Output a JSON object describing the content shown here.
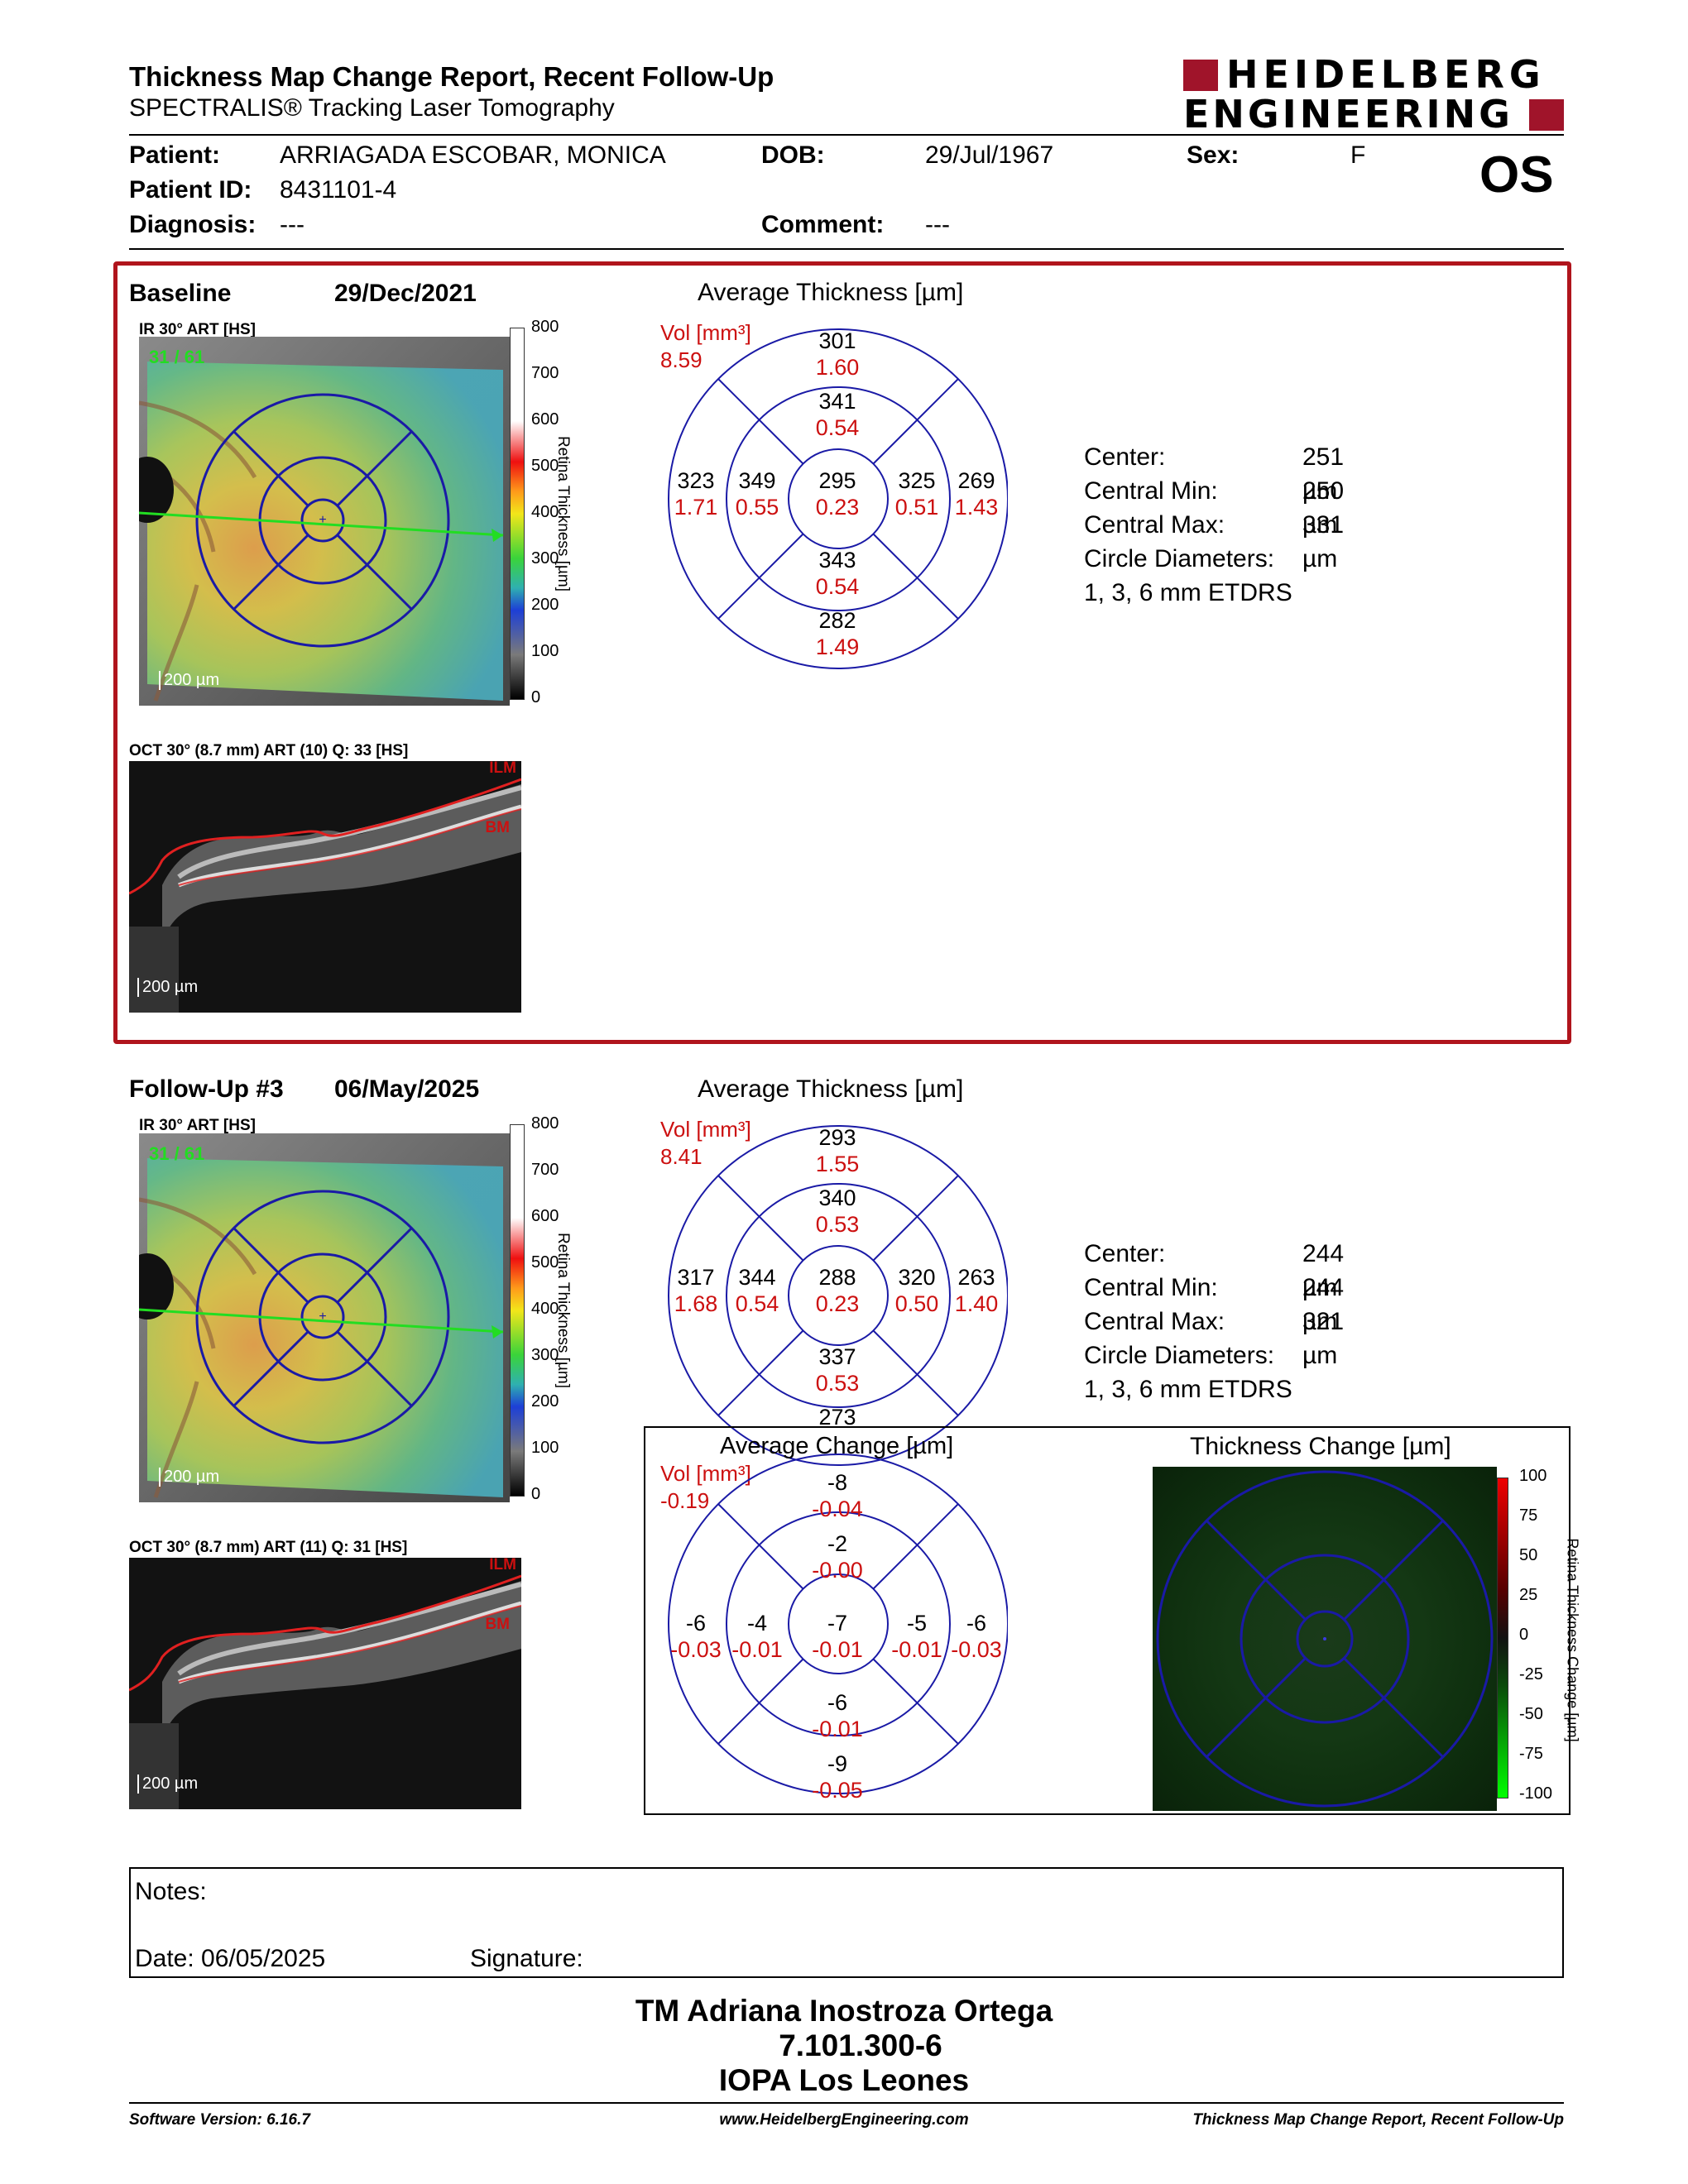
{
  "header": {
    "title": "Thickness Map Change Report, Recent Follow-Up",
    "subtitle": "SPECTRALIS® Tracking Laser Tomography",
    "logo_line1": "HEIDELBERG",
    "logo_line2": "ENGINEERING",
    "eye": "OS"
  },
  "patient": {
    "patient_label": "Patient:",
    "patient_value": "ARRIAGADA ESCOBAR, MONICA",
    "dob_label": "DOB:",
    "dob_value": "29/Jul/1967",
    "sex_label": "Sex:",
    "sex_value": "F",
    "id_label": "Patient ID:",
    "id_value": "8431101-4",
    "diagnosis_label": "Diagnosis:",
    "diagnosis_value": "---",
    "comment_label": "Comment:",
    "comment_value": "---"
  },
  "baseline": {
    "label": "Baseline",
    "date": "29/Dec/2021",
    "ir_title": "IR 30° ART [HS]",
    "fund_overlay": "31 / 61",
    "ir_scale": "200 µm",
    "oct_title": "OCT 30° (8.7 mm) ART (10) Q: 33 [HS]",
    "oct_scale": "200 µm",
    "ilm": "ILM",
    "bm": "BM",
    "colorbar_title": "Retina Thickness [µm]",
    "colorbar_ticks": [
      "800",
      "700",
      "600",
      "500",
      "400",
      "300",
      "200",
      "100",
      "0"
    ],
    "map_title": "Average Thickness [µm]",
    "vol_label": "Vol [mm³]",
    "vol_value": "8.59",
    "etdrs": {
      "center": {
        "t": "295",
        "v": "0.23"
      },
      "inner_sup": {
        "t": "341",
        "v": "0.54"
      },
      "inner_inf": {
        "t": "343",
        "v": "0.54"
      },
      "inner_temp": {
        "t": "349",
        "v": "0.55"
      },
      "inner_nas": {
        "t": "325",
        "v": "0.51"
      },
      "outer_sup": {
        "t": "301",
        "v": "1.60"
      },
      "outer_inf": {
        "t": "282",
        "v": "1.49"
      },
      "outer_temp": {
        "t": "323",
        "v": "1.71"
      },
      "outer_nas": {
        "t": "269",
        "v": "1.43"
      }
    },
    "stats": {
      "center_label": "Center:",
      "center_value": "251 µm",
      "min_label": "Central Min:",
      "min_value": "250 µm",
      "max_label": "Central Max:",
      "max_value": "331 µm",
      "diam_label": "Circle Diameters:",
      "diam_value": "1, 3, 6 mm ETDRS"
    }
  },
  "followup": {
    "label": "Follow-Up #3",
    "date": "06/May/2025",
    "ir_title": "IR 30° ART [HS]",
    "fund_overlay": "31 / 61",
    "ir_scale": "200 µm",
    "oct_title": "OCT 30° (8.7 mm) ART (11) Q: 31 [HS]",
    "oct_scale": "200 µm",
    "ilm": "ILM",
    "bm": "BM",
    "colorbar_title": "Retina Thickness [µm]",
    "colorbar_ticks": [
      "800",
      "700",
      "600",
      "500",
      "400",
      "300",
      "200",
      "100",
      "0"
    ],
    "map_title": "Average Thickness [µm]",
    "vol_label": "Vol [mm³]",
    "vol_value": "8.41",
    "etdrs": {
      "center": {
        "t": "288",
        "v": "0.23"
      },
      "inner_sup": {
        "t": "340",
        "v": "0.53"
      },
      "inner_inf": {
        "t": "337",
        "v": "0.53"
      },
      "inner_temp": {
        "t": "344",
        "v": "0.54"
      },
      "inner_nas": {
        "t": "320",
        "v": "0.50"
      },
      "outer_sup": {
        "t": "293",
        "v": "1.55"
      },
      "outer_inf": {
        "t": "273",
        "v": ""
      },
      "outer_temp": {
        "t": "317",
        "v": "1.68"
      },
      "outer_nas": {
        "t": "263",
        "v": "1.40"
      }
    },
    "stats": {
      "center_label": "Center:",
      "center_value": "244 µm",
      "min_label": "Central Min:",
      "min_value": "244 µm",
      "max_label": "Central Max:",
      "max_value": "321 µm",
      "diam_label": "Circle Diameters:",
      "diam_value": "1, 3, 6 mm ETDRS"
    }
  },
  "change": {
    "map_title": "Average Change [µm]",
    "vol_label": "Vol [mm³]",
    "vol_value": "-0.19",
    "etdrs": {
      "center": {
        "t": "-7",
        "v": "-0.01"
      },
      "inner_sup": {
        "t": "-2",
        "v": "-0.00"
      },
      "inner_inf": {
        "t": "-6",
        "v": "-0.01"
      },
      "inner_temp": {
        "t": "-4",
        "v": "-0.01"
      },
      "inner_nas": {
        "t": "-5",
        "v": "-0.01"
      },
      "outer_sup": {
        "t": "-8",
        "v": "-0.04"
      },
      "outer_inf": {
        "t": "-9",
        "v": "-0.05"
      },
      "outer_temp": {
        "t": "-6",
        "v": "-0.03"
      },
      "outer_nas": {
        "t": "-6",
        "v": "-0.03"
      }
    },
    "thickness_change_title": "Thickness Change [µm]",
    "change_bar_title": "Retina Thickness Change [µm]",
    "change_ticks": [
      "100",
      "75",
      "50",
      "25",
      "0",
      "-25",
      "-50",
      "-75",
      "-100"
    ]
  },
  "notes": {
    "notes_label": "Notes:",
    "date_label": "Date: 06/05/2025",
    "signature_label": "Signature:"
  },
  "stamp": {
    "line1": "TM Adriana Inostroza Ortega",
    "line2": "7.101.300-6",
    "line3": "IOPA Los Leones"
  },
  "footer": {
    "left": "Software Version: 6.16.7",
    "center": "www.HeidelbergEngineering.com",
    "right": "Thickness Map Change Report, Recent Follow-Up"
  },
  "colors": {
    "frame_red": "#b0141c",
    "value_red": "#cc1010",
    "circle_blue": "#1a1aa6",
    "scan_green": "#22dd22",
    "logo_red": "#a0142a"
  }
}
